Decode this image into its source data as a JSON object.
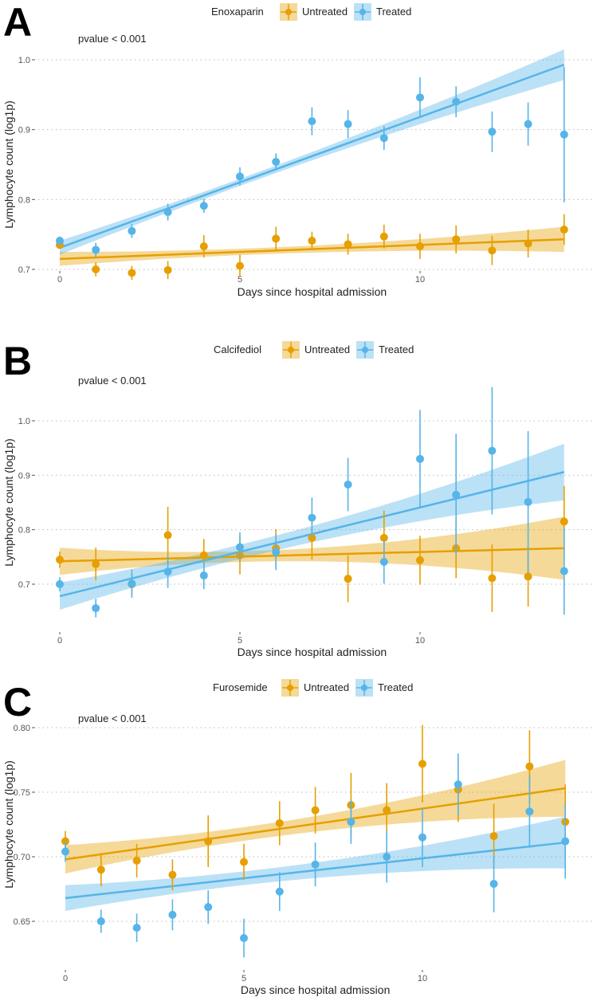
{
  "colors": {
    "untreated": "#E69F00",
    "treated": "#56B4E9"
  },
  "chart_data": [
    {
      "type": "line",
      "panel_label": "A",
      "legend_title": "Enoxaparin",
      "legend_position": "top",
      "annotation": "pvalue < 0.001",
      "xlabel": "Days since hospital admission",
      "ylabel": "Lymphocyte count (log1p)",
      "x_ticks": [
        "0",
        "5",
        "10"
      ],
      "y_ticks": [
        "0.7",
        "0.8",
        "0.9",
        "1.0"
      ],
      "grid": "horizontal dotted",
      "x": [
        0,
        1,
        2,
        3,
        4,
        5,
        6,
        7,
        8,
        9,
        10,
        11,
        12,
        13,
        14
      ],
      "series": [
        {
          "name": "Untreated",
          "values": [
            0.735,
            0.7,
            0.695,
            0.699,
            0.733,
            0.705,
            0.744,
            0.741,
            0.736,
            0.747,
            0.733,
            0.743,
            0.727,
            0.737,
            0.757
          ],
          "error": [
            0.005,
            0.01,
            0.01,
            0.013,
            0.016,
            0.016,
            0.017,
            0.013,
            0.015,
            0.017,
            0.018,
            0.02,
            0.021,
            0.02,
            0.022
          ],
          "fit": {
            "start": 0.715,
            "end": 0.743,
            "ci": [
              0.01,
              0.005,
              0.018
            ]
          }
        },
        {
          "name": "Treated",
          "values": [
            0.741,
            0.728,
            0.755,
            0.782,
            0.791,
            0.833,
            0.854,
            0.912,
            0.908,
            0.888,
            0.946,
            0.94,
            0.897,
            0.908,
            0.893
          ],
          "error": [
            0.006,
            0.01,
            0.01,
            0.012,
            0.01,
            0.013,
            0.012,
            0.02,
            0.02,
            0.017,
            0.029,
            0.022,
            0.029,
            0.031,
            0.097
          ],
          "fit": {
            "start": 0.731,
            "end": 0.993,
            "ci": [
              0.01,
              0.006,
              0.022
            ]
          }
        }
      ]
    },
    {
      "type": "line",
      "panel_label": "B",
      "legend_title": "Calcifediol",
      "legend_position": "top",
      "annotation": "pvalue < 0.001",
      "xlabel": "Days since hospital admission",
      "ylabel": "Lymphocyte count (log1p)",
      "x_ticks": [
        "0",
        "5",
        "10"
      ],
      "y_ticks": [
        "0.7",
        "0.8",
        "0.9",
        "1.0"
      ],
      "grid": "horizontal dotted",
      "x": [
        0,
        1,
        2,
        3,
        4,
        5,
        6,
        7,
        8,
        9,
        10,
        11,
        12,
        13,
        14
      ],
      "series": [
        {
          "name": "Untreated",
          "values": [
            0.745,
            0.737,
            0.7,
            0.79,
            0.753,
            0.753,
            0.766,
            0.785,
            0.71,
            0.785,
            0.744,
            0.766,
            0.711,
            0.714,
            0.815
          ],
          "error": [
            0.015,
            0.03,
            0.02,
            0.052,
            0.03,
            0.035,
            0.035,
            0.04,
            0.043,
            0.05,
            0.045,
            0.055,
            0.062,
            0.055,
            0.065
          ],
          "fit": {
            "start": 0.742,
            "end": 0.766,
            "ci": [
              0.025,
              0.012,
              0.058
            ]
          }
        },
        {
          "name": "Treated",
          "values": [
            0.7,
            0.656,
            0.701,
            0.723,
            0.716,
            0.768,
            0.759,
            0.822,
            0.883,
            0.741,
            0.93,
            0.864,
            0.945,
            0.851,
            0.724
          ],
          "error": [
            0.013,
            0.017,
            0.026,
            0.03,
            0.025,
            0.027,
            0.033,
            0.037,
            0.049,
            0.04,
            0.09,
            0.112,
            0.117,
            0.13,
            0.08
          ],
          "fit": {
            "start": 0.678,
            "end": 0.906,
            "ci": [
              0.025,
              0.015,
              0.052
            ]
          }
        }
      ]
    },
    {
      "type": "line",
      "panel_label": "C",
      "legend_title": "Furosemide",
      "legend_position": "top",
      "annotation": "pvalue < 0.001",
      "xlabel": "Days since hospital admission",
      "ylabel": "Lymphocyte count (log1p)",
      "x_ticks": [
        "0",
        "5",
        "10"
      ],
      "y_ticks": [
        "0.65",
        "0.70",
        "0.75",
        "0.80"
      ],
      "grid": "horizontal dotted",
      "x": [
        0,
        1,
        2,
        3,
        4,
        5,
        6,
        7,
        8,
        9,
        10,
        11,
        12,
        13,
        14
      ],
      "series": [
        {
          "name": "Untreated",
          "values": [
            0.712,
            0.69,
            0.697,
            0.686,
            0.712,
            0.696,
            0.726,
            0.736,
            0.74,
            0.736,
            0.772,
            0.752,
            0.716,
            0.77,
            0.727
          ],
          "error": [
            0.008,
            0.013,
            0.013,
            0.012,
            0.02,
            0.014,
            0.017,
            0.018,
            0.025,
            0.021,
            0.03,
            0.025,
            0.025,
            0.028,
            0.029
          ],
          "fit": {
            "start": 0.698,
            "end": 0.753,
            "ci": [
              0.011,
              0.006,
              0.022
            ]
          }
        },
        {
          "name": "Treated",
          "values": [
            0.704,
            0.65,
            0.645,
            0.655,
            0.661,
            0.637,
            0.673,
            0.694,
            0.727,
            0.7,
            0.715,
            0.756,
            0.679,
            0.735,
            0.712
          ],
          "error": [
            0.008,
            0.009,
            0.011,
            0.012,
            0.013,
            0.015,
            0.015,
            0.017,
            0.017,
            0.02,
            0.023,
            0.024,
            0.022,
            0.028,
            0.029
          ],
          "fit": {
            "start": 0.668,
            "end": 0.711,
            "ci": [
              0.01,
              0.006,
              0.02
            ]
          }
        }
      ]
    }
  ]
}
